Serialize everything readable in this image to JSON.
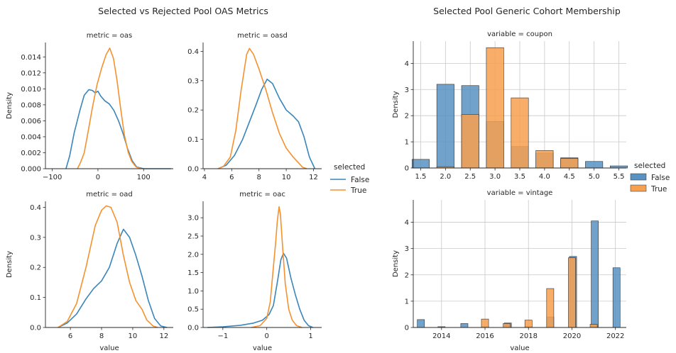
{
  "colors": {
    "false": "#3a85b9",
    "true": "#f5912f",
    "false_fill": "#5792c2",
    "true_fill": "#f7a04f",
    "edge": "#2f2f2f",
    "grid": "#c8c8c8"
  },
  "left_figure": {
    "title": "Selected vs Rejected Pool OAS Metrics",
    "legend": {
      "title": "selected",
      "entries": [
        "False",
        "True"
      ]
    }
  },
  "right_figure": {
    "title": "Selected Pool Generic Cohort Membership",
    "legend": {
      "title": "selected",
      "entries": [
        "False",
        "True"
      ]
    }
  },
  "chart_data": [
    {
      "id": "oas",
      "type": "line",
      "title": "metric = oas",
      "xlabel": "",
      "ylabel": "Density",
      "xlim": [
        -115,
        165
      ],
      "ylim": [
        0,
        0.0158
      ],
      "xticks": [
        -100,
        0,
        100
      ],
      "xtick_labels": [
        "−100",
        "0",
        "100"
      ],
      "yticks": [
        0,
        0.002,
        0.004,
        0.006,
        0.008,
        0.01,
        0.012,
        0.014
      ],
      "ytick_labels": [
        "0.000",
        "0.002",
        "0.004",
        "0.006",
        "0.008",
        "0.010",
        "0.012",
        "0.014"
      ],
      "series": [
        {
          "name": "False",
          "points": [
            [
              -70,
              0
            ],
            [
              -62,
              0.0016
            ],
            [
              -52,
              0.0045
            ],
            [
              -40,
              0.0072
            ],
            [
              -30,
              0.0092
            ],
            [
              -20,
              0.0099
            ],
            [
              -12,
              0.0098
            ],
            [
              -6,
              0.0095
            ],
            [
              0,
              0.0097
            ],
            [
              6,
              0.0091
            ],
            [
              15,
              0.0085
            ],
            [
              25,
              0.0081
            ],
            [
              35,
              0.0073
            ],
            [
              45,
              0.006
            ],
            [
              55,
              0.0044
            ],
            [
              65,
              0.0025
            ],
            [
              75,
              0.001
            ],
            [
              85,
              0.0002
            ],
            [
              100,
              0
            ],
            [
              130,
              0
            ],
            [
              160,
              0
            ]
          ]
        },
        {
          "name": "True",
          "points": [
            [
              -45,
              0
            ],
            [
              -38,
              0.0008
            ],
            [
              -30,
              0.002
            ],
            [
              -22,
              0.0045
            ],
            [
              -12,
              0.0077
            ],
            [
              -2,
              0.0105
            ],
            [
              8,
              0.0126
            ],
            [
              18,
              0.0143
            ],
            [
              26,
              0.0151
            ],
            [
              34,
              0.0138
            ],
            [
              42,
              0.011
            ],
            [
              50,
              0.0074
            ],
            [
              58,
              0.0042
            ],
            [
              66,
              0.0021
            ],
            [
              74,
              0.0009
            ],
            [
              84,
              0.0002
            ],
            [
              95,
              0
            ]
          ]
        }
      ]
    },
    {
      "id": "oasd",
      "type": "line",
      "title": "metric = oasd",
      "xlabel": "",
      "ylabel": "",
      "xlim": [
        3.9,
        12.6
      ],
      "ylim": [
        0,
        0.43
      ],
      "xticks": [
        4,
        6,
        8,
        10,
        12
      ],
      "xtick_labels": [
        "4",
        "6",
        "8",
        "10",
        "12"
      ],
      "yticks": [
        0,
        0.1,
        0.2,
        0.3,
        0.4
      ],
      "ytick_labels": [
        "0.0",
        "0.1",
        "0.2",
        "0.3",
        "0.4"
      ],
      "series": [
        {
          "name": "False",
          "points": [
            [
              5.0,
              0
            ],
            [
              5.6,
              0.012
            ],
            [
              6.2,
              0.045
            ],
            [
              6.8,
              0.1
            ],
            [
              7.3,
              0.16
            ],
            [
              7.8,
              0.22
            ],
            [
              8.2,
              0.27
            ],
            [
              8.6,
              0.305
            ],
            [
              9.0,
              0.29
            ],
            [
              9.5,
              0.24
            ],
            [
              10.0,
              0.2
            ],
            [
              10.5,
              0.18
            ],
            [
              10.9,
              0.16
            ],
            [
              11.3,
              0.11
            ],
            [
              11.7,
              0.04
            ],
            [
              12.1,
              0
            ]
          ]
        },
        {
          "name": "True",
          "points": [
            [
              5.0,
              0
            ],
            [
              5.4,
              0.008
            ],
            [
              5.9,
              0.04
            ],
            [
              6.3,
              0.13
            ],
            [
              6.7,
              0.27
            ],
            [
              7.1,
              0.39
            ],
            [
              7.3,
              0.41
            ],
            [
              7.6,
              0.39
            ],
            [
              8.0,
              0.34
            ],
            [
              8.5,
              0.27
            ],
            [
              9.0,
              0.19
            ],
            [
              9.5,
              0.12
            ],
            [
              10.0,
              0.07
            ],
            [
              10.5,
              0.04
            ],
            [
              10.9,
              0.02
            ],
            [
              11.2,
              0.005
            ],
            [
              11.5,
              0
            ]
          ]
        }
      ]
    },
    {
      "id": "oad",
      "type": "line",
      "title": "metric = oad",
      "xlabel": "value",
      "ylabel": "Density",
      "xlim": [
        4.4,
        12.6
      ],
      "ylim": [
        0,
        0.42
      ],
      "xticks": [
        6,
        8,
        10,
        12
      ],
      "xtick_labels": [
        "6",
        "8",
        "10",
        "12"
      ],
      "yticks": [
        0,
        0.1,
        0.2,
        0.3,
        0.4
      ],
      "ytick_labels": [
        "0.0",
        "0.1",
        "0.2",
        "0.3",
        "0.4"
      ],
      "series": [
        {
          "name": "False",
          "points": [
            [
              5.2,
              0
            ],
            [
              5.8,
              0.015
            ],
            [
              6.4,
              0.045
            ],
            [
              7.0,
              0.095
            ],
            [
              7.5,
              0.13
            ],
            [
              8.0,
              0.155
            ],
            [
              8.5,
              0.2
            ],
            [
              9.0,
              0.28
            ],
            [
              9.4,
              0.327
            ],
            [
              9.8,
              0.3
            ],
            [
              10.2,
              0.24
            ],
            [
              10.6,
              0.17
            ],
            [
              11.0,
              0.09
            ],
            [
              11.4,
              0.03
            ],
            [
              11.8,
              0.005
            ],
            [
              12.2,
              0
            ]
          ]
        },
        {
          "name": "True",
          "points": [
            [
              5.2,
              0
            ],
            [
              5.8,
              0.02
            ],
            [
              6.4,
              0.08
            ],
            [
              7.0,
              0.2
            ],
            [
              7.6,
              0.34
            ],
            [
              8.0,
              0.39
            ],
            [
              8.3,
              0.405
            ],
            [
              8.6,
              0.4
            ],
            [
              9.0,
              0.35
            ],
            [
              9.4,
              0.24
            ],
            [
              9.8,
              0.15
            ],
            [
              10.2,
              0.09
            ],
            [
              10.6,
              0.06
            ],
            [
              10.9,
              0.025
            ],
            [
              11.3,
              0.005
            ],
            [
              11.6,
              0
            ]
          ]
        }
      ]
    },
    {
      "id": "oac",
      "type": "line",
      "title": "metric = oac",
      "xlabel": "value",
      "ylabel": "",
      "xlim": [
        -1.45,
        1.25
      ],
      "ylim": [
        0,
        3.45
      ],
      "xticks": [
        -1,
        0,
        1
      ],
      "xtick_labels": [
        "−1",
        "0",
        "1"
      ],
      "yticks": [
        0,
        0.5,
        1.0,
        1.5,
        2.0,
        2.5,
        3.0
      ],
      "ytick_labels": [
        "0.0",
        "0.5",
        "1.0",
        "1.5",
        "2.0",
        "2.5",
        "3.0"
      ],
      "series": [
        {
          "name": "False",
          "points": [
            [
              -1.35,
              0
            ],
            [
              -1.0,
              0.02
            ],
            [
              -0.6,
              0.06
            ],
            [
              -0.3,
              0.12
            ],
            [
              -0.1,
              0.2
            ],
            [
              0.05,
              0.35
            ],
            [
              0.15,
              0.6
            ],
            [
              0.25,
              1.3
            ],
            [
              0.32,
              1.85
            ],
            [
              0.38,
              2.03
            ],
            [
              0.45,
              1.9
            ],
            [
              0.55,
              1.35
            ],
            [
              0.65,
              0.9
            ],
            [
              0.75,
              0.5
            ],
            [
              0.85,
              0.2
            ],
            [
              0.95,
              0.05
            ],
            [
              1.05,
              0
            ]
          ]
        },
        {
          "name": "True",
          "points": [
            [
              -0.35,
              0
            ],
            [
              -0.15,
              0.05
            ],
            [
              0,
              0.25
            ],
            [
              0.08,
              0.7
            ],
            [
              0.14,
              1.5
            ],
            [
              0.2,
              2.3
            ],
            [
              0.24,
              2.9
            ],
            [
              0.28,
              3.3
            ],
            [
              0.31,
              3.1
            ],
            [
              0.36,
              2.2
            ],
            [
              0.42,
              1.2
            ],
            [
              0.5,
              0.5
            ],
            [
              0.58,
              0.2
            ],
            [
              0.68,
              0.05
            ],
            [
              0.8,
              0
            ]
          ]
        }
      ]
    },
    {
      "id": "coupon",
      "type": "bar",
      "title": "variable = coupon",
      "xlabel": "",
      "ylabel": "Density",
      "xlim": [
        1.35,
        5.65
      ],
      "ylim": [
        0,
        4.85
      ],
      "xticks": [
        1.5,
        2.0,
        2.5,
        3.0,
        3.5,
        4.0,
        4.5,
        5.0,
        5.5
      ],
      "xtick_labels": [
        "1.5",
        "2.0",
        "2.5",
        "3.0",
        "3.5",
        "4.0",
        "4.5",
        "5.0",
        "5.5"
      ],
      "yticks": [
        0,
        1,
        2,
        3,
        4
      ],
      "ytick_labels": [
        "0",
        "1",
        "2",
        "3",
        "4"
      ],
      "bin_width": 0.35,
      "series": [
        {
          "name": "False",
          "centers": [
            1.5,
            2.0,
            2.5,
            3.0,
            3.5,
            4.0,
            4.5,
            5.0,
            5.5
          ],
          "values": [
            0.33,
            3.2,
            3.15,
            1.78,
            0.82,
            0.57,
            0.39,
            0.25,
            0.08
          ]
        },
        {
          "name": "True",
          "centers": [
            2.0,
            2.5,
            3.0,
            3.5,
            4.0,
            4.5
          ],
          "values": [
            0.05,
            2.05,
            4.6,
            2.68,
            0.67,
            0.36
          ]
        }
      ]
    },
    {
      "id": "vintage",
      "type": "bar",
      "title": "variable = vintage",
      "xlabel": "value",
      "ylabel": "Density",
      "xlim": [
        2012.7,
        2022.5
      ],
      "ylim": [
        0,
        4.85
      ],
      "xticks": [
        2014,
        2016,
        2018,
        2020,
        2022
      ],
      "xtick_labels": [
        "2014",
        "2016",
        "2018",
        "2020",
        "2022"
      ],
      "yticks": [
        0,
        1,
        2,
        3,
        4
      ],
      "ytick_labels": [
        "0",
        "1",
        "2",
        "3",
        "4"
      ],
      "bin_width": 0.33,
      "series": [
        {
          "name": "False",
          "centers": [
            2013.05,
            2014.0,
            2015.05,
            2016.0,
            2017.05,
            2018.0,
            2019.0,
            2020.05,
            2021.05,
            2022.05
          ],
          "values": [
            0.3,
            0.03,
            0.15,
            0.03,
            0.17,
            0.03,
            0.4,
            2.7,
            4.05,
            2.27
          ]
        },
        {
          "name": "True",
          "centers": [
            2016.0,
            2017.0,
            2018.0,
            2019.0,
            2020.0,
            2021.0
          ],
          "values": [
            0.32,
            0.15,
            0.28,
            1.48,
            2.65,
            0.12
          ]
        }
      ]
    }
  ]
}
